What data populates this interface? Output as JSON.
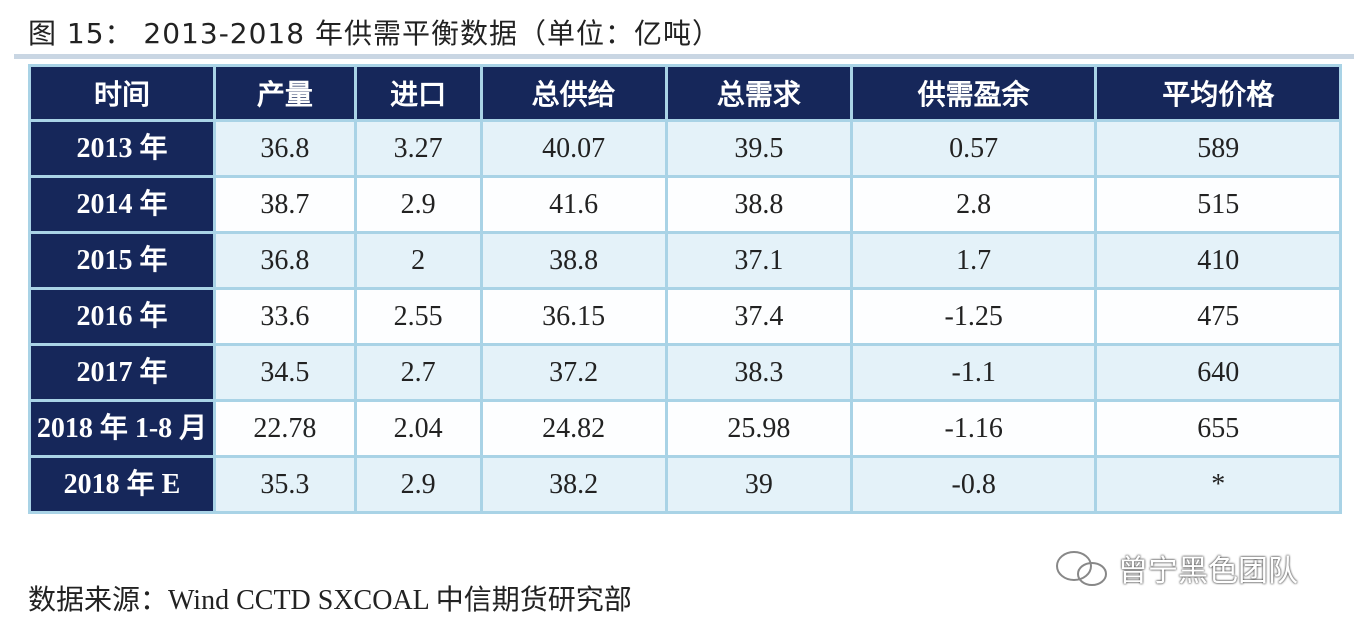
{
  "header": {
    "title": "图 15：  2013-2018 年供需平衡数据（单位：亿吨）"
  },
  "table": {
    "columns": [
      "时间",
      "产量",
      "进口",
      "总供给",
      "总需求",
      "供需盈余",
      "平均价格"
    ],
    "rows": [
      [
        "2013 年",
        "36.8",
        "3.27",
        "40.07",
        "39.5",
        "0.57",
        "589"
      ],
      [
        "2014 年",
        "38.7",
        "2.9",
        "41.6",
        "38.8",
        "2.8",
        "515"
      ],
      [
        "2015 年",
        "36.8",
        "2",
        "38.8",
        "37.1",
        "1.7",
        "410"
      ],
      [
        "2016 年",
        "33.6",
        "2.55",
        "36.15",
        "37.4",
        "-1.25",
        "475"
      ],
      [
        "2017 年",
        "34.5",
        "2.7",
        "37.2",
        "38.3",
        "-1.1",
        "640"
      ],
      [
        "2018 年 1-8 月",
        "22.78",
        "2.04",
        "24.82",
        "25.98",
        "-1.16",
        "655"
      ],
      [
        "2018 年 E",
        "35.3",
        "2.9",
        "38.2",
        "39",
        "-0.8",
        "*"
      ]
    ]
  },
  "footer": {
    "source": "数据来源：Wind CCTD SXCOAL  中信期货研究部"
  },
  "watermark": "曾宁黑色团队"
}
